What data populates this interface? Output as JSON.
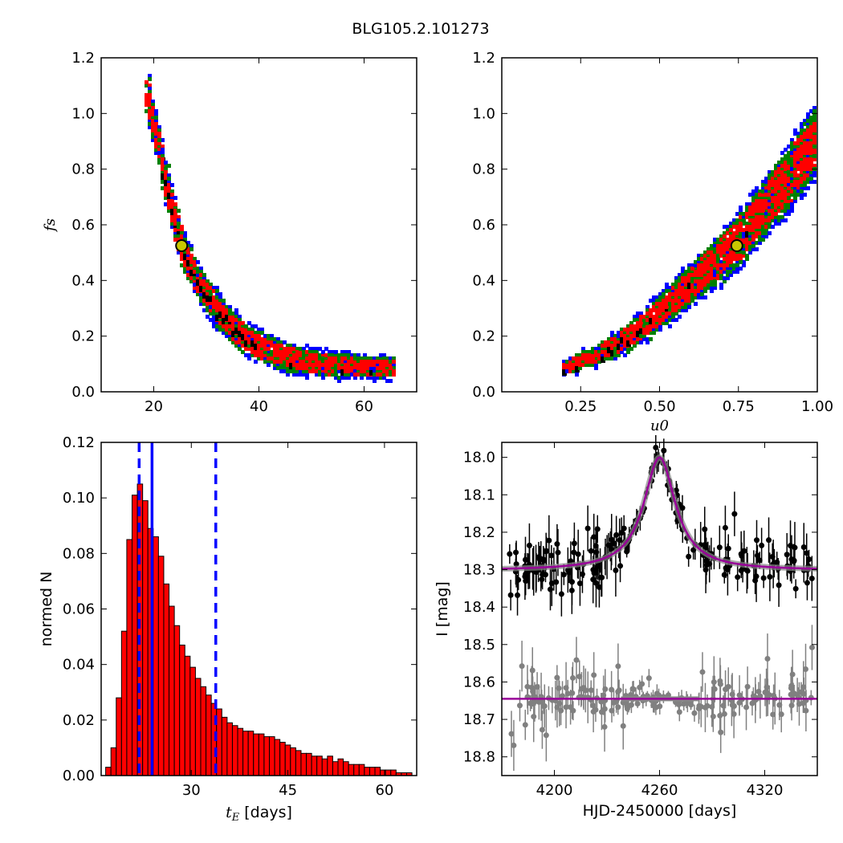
{
  "figure_title": "BLG105.2.101273",
  "colors": {
    "sigma1": "#ff0000",
    "sigma2": "#008000",
    "sigma3": "#0000ff",
    "best_chain": "#000000",
    "best_fit_marker_fill": "#c8c800",
    "histogram_bar": "#ff0000",
    "median_line": "#0000ff",
    "model_curve": "#990099",
    "data_points": "#000000",
    "residual_points": "#808080"
  },
  "chart_data": [
    {
      "id": "fs_vs_tE",
      "type": "heatmap",
      "title": "",
      "xlabel": "",
      "ylabel": "f_s",
      "xlim": [
        10,
        70
      ],
      "ylim": [
        0.0,
        1.2
      ],
      "xticks": [
        "20",
        "40",
        "60"
      ],
      "yticks": [
        "0.0",
        "0.2",
        "0.4",
        "0.6",
        "0.8",
        "1.0",
        "1.2"
      ],
      "description_of_regions": "Curved band of posterior samples from (18,1.07) down to (65,0.09); inner red (1 sigma), green (2 sigma), blue (3 sigma) edges",
      "band_center": [
        [
          18.5,
          1.07
        ],
        [
          20,
          0.93
        ],
        [
          21,
          0.85
        ],
        [
          22,
          0.76
        ],
        [
          23,
          0.67
        ],
        [
          24,
          0.6
        ],
        [
          25,
          0.53
        ],
        [
          26.5,
          0.46
        ],
        [
          28,
          0.4
        ],
        [
          30,
          0.34
        ],
        [
          32,
          0.29
        ],
        [
          35,
          0.23
        ],
        [
          38,
          0.18
        ],
        [
          42,
          0.145
        ],
        [
          46,
          0.12
        ],
        [
          50,
          0.105
        ],
        [
          55,
          0.095
        ],
        [
          60,
          0.09
        ],
        [
          65,
          0.088
        ]
      ],
      "best_fit": {
        "x": 25.3,
        "y": 0.525
      },
      "grid": false
    },
    {
      "id": "fs_vs_u0",
      "type": "heatmap",
      "title": "",
      "xlabel": "u_0",
      "ylabel": "",
      "xlim": [
        0.0,
        1.0
      ],
      "ylim": [
        0.0,
        1.2
      ],
      "xticks": [
        "0.25",
        "0.50",
        "0.75",
        "1.00"
      ],
      "yticks": [
        "0.0",
        "0.2",
        "0.4",
        "0.6",
        "0.8",
        "1.0",
        "1.2"
      ],
      "band_center": [
        [
          0.19,
          0.09
        ],
        [
          0.25,
          0.11
        ],
        [
          0.3,
          0.135
        ],
        [
          0.35,
          0.165
        ],
        [
          0.4,
          0.2
        ],
        [
          0.45,
          0.24
        ],
        [
          0.5,
          0.29
        ],
        [
          0.55,
          0.34
        ],
        [
          0.6,
          0.39
        ],
        [
          0.65,
          0.44
        ],
        [
          0.7,
          0.49
        ],
        [
          0.75,
          0.55
        ],
        [
          0.8,
          0.62
        ],
        [
          0.85,
          0.69
        ],
        [
          0.9,
          0.76
        ],
        [
          0.95,
          0.84
        ],
        [
          1.0,
          0.92
        ]
      ],
      "best_fit": {
        "x": 0.745,
        "y": 0.525
      },
      "grid": false
    },
    {
      "id": "tE_histogram",
      "type": "bar",
      "title": "",
      "xlabel": "t_E [days]",
      "ylabel": "normed N",
      "xlim": [
        16,
        65
      ],
      "ylim": [
        0.0,
        0.12
      ],
      "xticks": [
        "30",
        "45",
        "60"
      ],
      "yticks": [
        "0.00",
        "0.02",
        "0.04",
        "0.06",
        "0.08",
        "0.10",
        "0.12"
      ],
      "bin_width": 0.82,
      "bin_start": 16.7,
      "values": [
        0.003,
        0.01,
        0.028,
        0.052,
        0.085,
        0.101,
        0.105,
        0.099,
        0.089,
        0.086,
        0.079,
        0.069,
        0.061,
        0.054,
        0.047,
        0.043,
        0.039,
        0.035,
        0.032,
        0.029,
        0.026,
        0.024,
        0.021,
        0.019,
        0.018,
        0.017,
        0.016,
        0.016,
        0.015,
        0.015,
        0.014,
        0.014,
        0.013,
        0.012,
        0.011,
        0.01,
        0.009,
        0.008,
        0.008,
        0.007,
        0.007,
        0.006,
        0.007,
        0.005,
        0.006,
        0.005,
        0.004,
        0.004,
        0.004,
        0.003,
        0.003,
        0.003,
        0.002,
        0.002,
        0.002,
        0.001,
        0.001,
        0.001,
        0.001,
        0.0005
      ],
      "median": 23.9,
      "lower_bound": 21.9,
      "upper_bound": 33.8,
      "grid": false
    },
    {
      "id": "light_curve",
      "type": "scatter",
      "title": "",
      "xlabel": "HJD-2450000 [days]",
      "ylabel": "I [mag]",
      "xlim": [
        4170,
        4350
      ],
      "ylim": [
        18.85,
        17.96
      ],
      "xticks": [
        "4200",
        "4260",
        "4320"
      ],
      "yticks": [
        "18.0",
        "18.1",
        "18.2",
        "18.3",
        "18.4",
        "18.5",
        "18.6",
        "18.7",
        "18.8"
      ],
      "model": {
        "t0": 4260,
        "baseline": 18.302,
        "peak": 18.0,
        "width": 11
      },
      "residual_offset": 18.645,
      "grid": false
    }
  ]
}
